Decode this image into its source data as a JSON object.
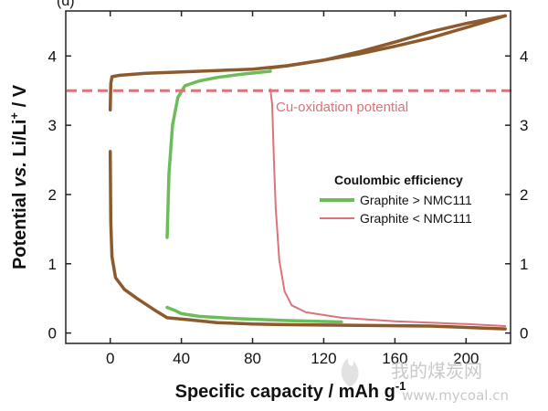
{
  "chart_data": {
    "type": "line",
    "panel_label": "(d)",
    "xlabel": "Specific capacity / mAh g",
    "xlabel_sup": "-1",
    "ylabel_parts": [
      "Potential ",
      "vs.",
      " Li/Li",
      "+",
      " / V"
    ],
    "xlim": [
      -25,
      225
    ],
    "ylim": [
      -0.15,
      4.65
    ],
    "x_ticks": [
      0,
      40,
      80,
      120,
      160,
      200
    ],
    "y_ticks": [
      0,
      1,
      2,
      3,
      4
    ],
    "grid": false,
    "legend": {
      "title": "Coulombic efficiency",
      "placement": "center-right",
      "entries": [
        {
          "label": "Graphite > NMC111",
          "color": "#6cbd5a"
        },
        {
          "label": "Graphite < NMC111",
          "color": "#d9747a"
        }
      ]
    },
    "annotation": {
      "text": "Cu-oxidation potential",
      "y": 3.5,
      "color": "#d9747a",
      "style": "dashed"
    },
    "series": [
      {
        "color": "#8c5a2c",
        "role": "cell charge (upper)",
        "points": [
          [
            0,
            3.22
          ],
          [
            0.3,
            3.6
          ],
          [
            1,
            3.7
          ],
          [
            5,
            3.72
          ],
          [
            20,
            3.75
          ],
          [
            40,
            3.77
          ],
          [
            60,
            3.79
          ],
          [
            80,
            3.81
          ],
          [
            100,
            3.86
          ],
          [
            120,
            3.94
          ],
          [
            140,
            4.03
          ],
          [
            160,
            4.14
          ],
          [
            180,
            4.26
          ],
          [
            200,
            4.41
          ],
          [
            222,
            4.58
          ]
        ]
      },
      {
        "color": "#8c5a2c",
        "role": "cell discharge (lower)",
        "points": [
          [
            222,
            4.58
          ],
          [
            200,
            4.47
          ],
          [
            180,
            4.35
          ],
          [
            160,
            4.2
          ],
          [
            140,
            4.06
          ],
          [
            120,
            3.94
          ],
          [
            100,
            3.86
          ],
          [
            90,
            3.83
          ]
        ]
      },
      {
        "color": "#8c5a2c",
        "role": "graphite potential",
        "points": [
          [
            0,
            2.62
          ],
          [
            0.3,
            1.6
          ],
          [
            1,
            1.1
          ],
          [
            3,
            0.8
          ],
          [
            8,
            0.63
          ],
          [
            15,
            0.5
          ],
          [
            25,
            0.33
          ],
          [
            32,
            0.22
          ],
          [
            45,
            0.19
          ],
          [
            60,
            0.15
          ],
          [
            80,
            0.13
          ],
          [
            100,
            0.12
          ],
          [
            140,
            0.11
          ],
          [
            180,
            0.1
          ],
          [
            222,
            0.06
          ]
        ]
      },
      {
        "color": "#6cbd5a",
        "role": "Graphite > NMC111 (high)",
        "points": [
          [
            32,
            1.38
          ],
          [
            33,
            2.3
          ],
          [
            35,
            3.0
          ],
          [
            38,
            3.4
          ],
          [
            42,
            3.57
          ],
          [
            50,
            3.64
          ],
          [
            60,
            3.69
          ],
          [
            75,
            3.74
          ],
          [
            90,
            3.78
          ]
        ]
      },
      {
        "color": "#6cbd5a",
        "role": "Graphite > NMC111 (low)",
        "points": [
          [
            32,
            0.37
          ],
          [
            36,
            0.33
          ],
          [
            40,
            0.28
          ],
          [
            50,
            0.24
          ],
          [
            70,
            0.21
          ],
          [
            100,
            0.18
          ],
          [
            130,
            0.16
          ]
        ]
      },
      {
        "color": "#d9747a",
        "role": "Graphite < NMC111 (high)",
        "points": [
          [
            90,
            3.52
          ],
          [
            91,
            3.3
          ],
          [
            92,
            2.5
          ],
          [
            93,
            1.8
          ],
          [
            95,
            1.05
          ],
          [
            98,
            0.6
          ],
          [
            102,
            0.4
          ],
          [
            110,
            0.3
          ],
          [
            130,
            0.22
          ],
          [
            160,
            0.17
          ],
          [
            200,
            0.13
          ],
          [
            222,
            0.1
          ]
        ]
      }
    ]
  },
  "watermark": {
    "chinese": "我的煤炭网",
    "url": "www.mycoal.cn"
  }
}
